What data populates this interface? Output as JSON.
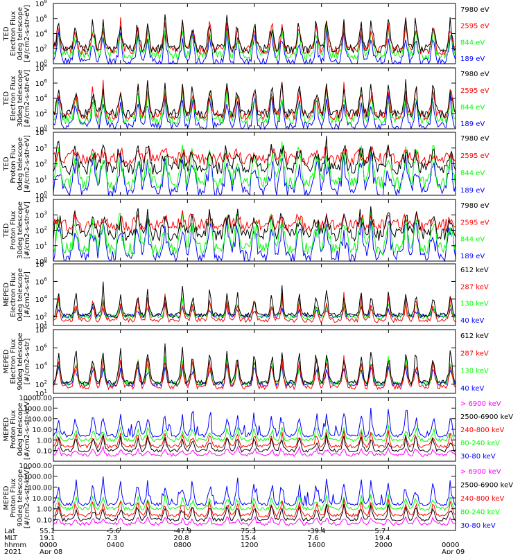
{
  "colors": {
    "black": "#000000",
    "red": "#ff0000",
    "green": "#00ff00",
    "blue": "#0000ff",
    "magenta": "#ff00ff"
  },
  "chart_data": {
    "type": "line",
    "x_axis": {
      "rows": [
        {
          "label": "Lat",
          "values": [
            "55.1",
            "-5.6",
            "-47.9",
            "75.3",
            "-39.4",
            "5.7",
            ""
          ]
        },
        {
          "label": "MLT",
          "values": [
            "19.1",
            "7.3",
            "20.8",
            "15.4",
            "7.6",
            "19.4",
            ""
          ]
        },
        {
          "label": "hhmm",
          "values": [
            "0000",
            "0400",
            "0800",
            "1200",
            "1600",
            "2000",
            "0000"
          ]
        },
        {
          "label": "2021",
          "values": [
            "Apr 08",
            "",
            "",
            "",
            "",
            "",
            "Apr 09"
          ]
        }
      ],
      "hours": [
        0,
        4,
        8,
        12,
        16,
        20,
        24
      ],
      "range_hours": [
        0,
        24
      ]
    },
    "panels": [
      {
        "ylabel": [
          "TED",
          "Electron Flux",
          "0deg telescope",
          "[#/cm2-s-str-eV]"
        ],
        "y_scale": "log",
        "yticks": [
          {
            "value": 1,
            "label": "10",
            "exp": "0"
          },
          {
            "value": 100,
            "label": "10",
            "exp": "2"
          },
          {
            "value": 10000,
            "label": "10",
            "exp": "4"
          },
          {
            "value": 1000000,
            "label": "10",
            "exp": "6"
          },
          {
            "value": 100000000,
            "label": "10",
            "exp": "8"
          }
        ],
        "ylim": [
          1,
          100000000
        ],
        "legend": [
          {
            "label": "7980 eV",
            "color": "#000000"
          },
          {
            "label": "2595 eV",
            "color": "#ff0000"
          },
          {
            "label": "844 eV",
            "color": "#00ff00"
          },
          {
            "label": "189 eV",
            "color": "#0000ff"
          }
        ],
        "style": "ted_e"
      },
      {
        "ylabel": [
          "TED",
          "Electron Flux",
          "30deg telescope",
          "[#/cm2-s-str-eV]"
        ],
        "y_scale": "log",
        "yticks": [
          {
            "value": 1,
            "label": "10",
            "exp": "0"
          },
          {
            "value": 100,
            "label": "10",
            "exp": "2"
          },
          {
            "value": 10000,
            "label": "10",
            "exp": "4"
          },
          {
            "value": 1000000,
            "label": "10",
            "exp": "6"
          },
          {
            "value": 100000000,
            "label": "10",
            "exp": "8"
          }
        ],
        "ylim": [
          1,
          100000000
        ],
        "legend": [
          {
            "label": "7980 eV",
            "color": "#000000"
          },
          {
            "label": "2595 eV",
            "color": "#ff0000"
          },
          {
            "label": "844 eV",
            "color": "#00ff00"
          },
          {
            "label": "189 eV",
            "color": "#0000ff"
          }
        ],
        "style": "ted_e"
      },
      {
        "ylabel": [
          "TED",
          "Proton Flux",
          "0deg telescope",
          "[#/cm2-s-str-eV]"
        ],
        "y_scale": "log",
        "yticks": [
          {
            "value": 1,
            "label": "10",
            "exp": "0"
          },
          {
            "value": 10,
            "label": "10",
            "exp": "1"
          },
          {
            "value": 100,
            "label": "10",
            "exp": "2"
          },
          {
            "value": 1000,
            "label": "10",
            "exp": "3"
          },
          {
            "value": 10000,
            "label": "10",
            "exp": "4"
          }
        ],
        "ylim": [
          1,
          10000
        ],
        "legend": [
          {
            "label": "7980 eV",
            "color": "#000000"
          },
          {
            "label": "2595 eV",
            "color": "#ff0000"
          },
          {
            "label": "844 eV",
            "color": "#00ff00"
          },
          {
            "label": "189 eV",
            "color": "#0000ff"
          }
        ],
        "style": "ted_p"
      },
      {
        "ylabel": [
          "TED",
          "Proton Flux",
          "30deg telescope",
          "[#/cm2-s-str-eV]"
        ],
        "y_scale": "log",
        "yticks": [
          {
            "value": 1,
            "label": "10",
            "exp": "0"
          },
          {
            "value": 10,
            "label": "10",
            "exp": "1"
          },
          {
            "value": 100,
            "label": "10",
            "exp": "2"
          },
          {
            "value": 1000,
            "label": "10",
            "exp": "3"
          },
          {
            "value": 10000,
            "label": "10",
            "exp": "4"
          }
        ],
        "ylim": [
          1,
          10000
        ],
        "legend": [
          {
            "label": "7980 eV",
            "color": "#000000"
          },
          {
            "label": "2595 eV",
            "color": "#ff0000"
          },
          {
            "label": "844 eV",
            "color": "#00ff00"
          },
          {
            "label": "189 eV",
            "color": "#0000ff"
          }
        ],
        "style": "ted_p"
      },
      {
        "ylabel": [
          "MEPED",
          "Electron Flux",
          "0deg telescope",
          "[#/cm2-s-str]"
        ],
        "y_scale": "log",
        "yticks": [
          {
            "value": 10,
            "label": "10",
            "exp": "1"
          },
          {
            "value": 100,
            "label": "10",
            "exp": "2"
          },
          {
            "value": 10000,
            "label": "10",
            "exp": "4"
          },
          {
            "value": 1000000,
            "label": "10",
            "exp": "6"
          },
          {
            "value": 100000000,
            "label": "10",
            "exp": "8"
          }
        ],
        "ylim": [
          10,
          100000000
        ],
        "legend": [
          {
            "label": "612 keV",
            "color": "#000000"
          },
          {
            "label": "287 keV",
            "color": "#ff0000"
          },
          {
            "label": "130 keV",
            "color": "#00ff00"
          },
          {
            "label": "40 keV",
            "color": "#0000ff"
          }
        ],
        "style": "mep_e0"
      },
      {
        "ylabel": [
          "MEPED",
          "Electron Flux",
          "90deg telescope",
          "[#/cm2-s-str]"
        ],
        "y_scale": "log",
        "yticks": [
          {
            "value": 10,
            "label": "10",
            "exp": "1"
          },
          {
            "value": 100,
            "label": "10",
            "exp": "2"
          },
          {
            "value": 10000,
            "label": "10",
            "exp": "4"
          },
          {
            "value": 1000000,
            "label": "10",
            "exp": "6"
          },
          {
            "value": 100000000,
            "label": "10",
            "exp": "8"
          }
        ],
        "ylim": [
          10,
          100000000
        ],
        "legend": [
          {
            "label": "612 keV",
            "color": "#000000"
          },
          {
            "label": "287 keV",
            "color": "#ff0000"
          },
          {
            "label": "130 keV",
            "color": "#00ff00"
          },
          {
            "label": "40 keV",
            "color": "#0000ff"
          }
        ],
        "style": "mep_e90"
      },
      {
        "ylabel": [
          "MEPED",
          "Proton Flux",
          "0deg telescope",
          "[#/cm2-s-str-keV]"
        ],
        "y_scale": "log",
        "yticks": [
          {
            "value": 0.1,
            "label": "0.10"
          },
          {
            "value": 1,
            "label": "1.00"
          },
          {
            "value": 10,
            "label": "10.00"
          },
          {
            "value": 100,
            "label": "100.00"
          },
          {
            "value": 1000,
            "label": "1000.00"
          },
          {
            "value": 10000,
            "label": "10000.00"
          }
        ],
        "ylim": [
          0.01,
          10000
        ],
        "legend": [
          {
            "label": "> 6900 keV",
            "color": "#ff00ff"
          },
          {
            "label": "2500-6900 keV",
            "color": "#000000"
          },
          {
            "label": "240-800 keV",
            "color": "#ff0000"
          },
          {
            "label": "80-240 keV",
            "color": "#00ff00"
          },
          {
            "label": "30-80 keV",
            "color": "#0000ff"
          }
        ],
        "style": "mep_p"
      },
      {
        "ylabel": [
          "MEPED",
          "Proton Flux",
          "90deg telescope",
          "[#/cm2-s-str-keV]"
        ],
        "y_scale": "log",
        "yticks": [
          {
            "value": 0.1,
            "label": "0.10"
          },
          {
            "value": 1,
            "label": "1.00"
          },
          {
            "value": 10,
            "label": "10.00"
          },
          {
            "value": 100,
            "label": "100.00"
          },
          {
            "value": 1000,
            "label": "1000.00"
          },
          {
            "value": 10000,
            "label": "10000.00"
          }
        ],
        "ylim": [
          0.01,
          10000
        ],
        "legend": [
          {
            "label": "> 6900 keV",
            "color": "#ff00ff"
          },
          {
            "label": "2500-6900 keV",
            "color": "#000000"
          },
          {
            "label": "240-800 keV",
            "color": "#ff0000"
          },
          {
            "label": "80-240 keV",
            "color": "#00ff00"
          },
          {
            "label": "30-80 keV",
            "color": "#0000ff"
          }
        ],
        "style": "mep_p"
      }
    ]
  }
}
